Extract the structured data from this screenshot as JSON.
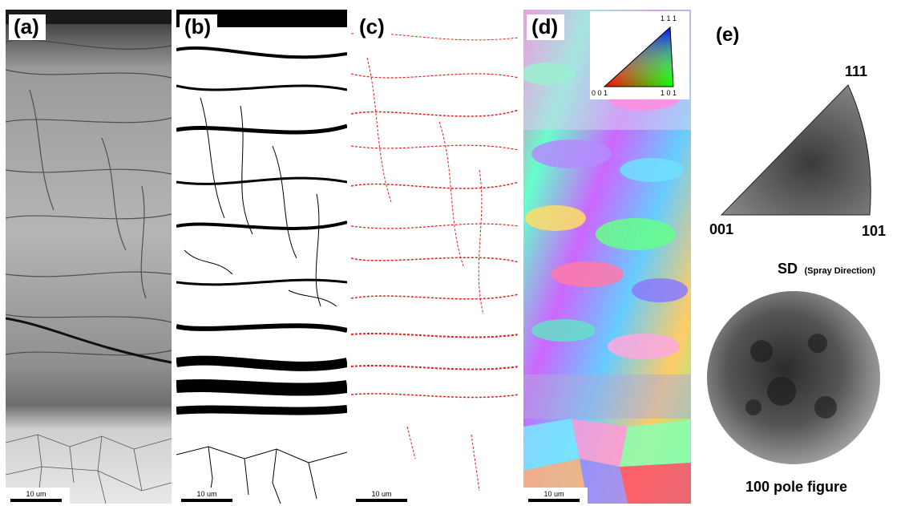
{
  "panels": {
    "a": {
      "label": "(a)",
      "scale_bar": "10 um"
    },
    "b": {
      "label": "(b)",
      "scale_bar": "10 um"
    },
    "c": {
      "label": "(c)",
      "scale_bar": "10 um"
    },
    "d": {
      "label": "(d)",
      "scale_bar": "10 um",
      "ipf_key": {
        "top": "1 1 1",
        "left": "0 0 1",
        "right": "1 0 1"
      }
    },
    "e": {
      "label": "(e)"
    }
  },
  "ipf_triangle": {
    "top": "111",
    "left": "001",
    "right": "101"
  },
  "pole_figure": {
    "sd_label": "SD",
    "sd_note": "(Spray Direction)",
    "caption": "100 pole figure"
  },
  "colors": {
    "ebsd_boundary": "#e0201a",
    "grain_map_black": "#000000"
  }
}
